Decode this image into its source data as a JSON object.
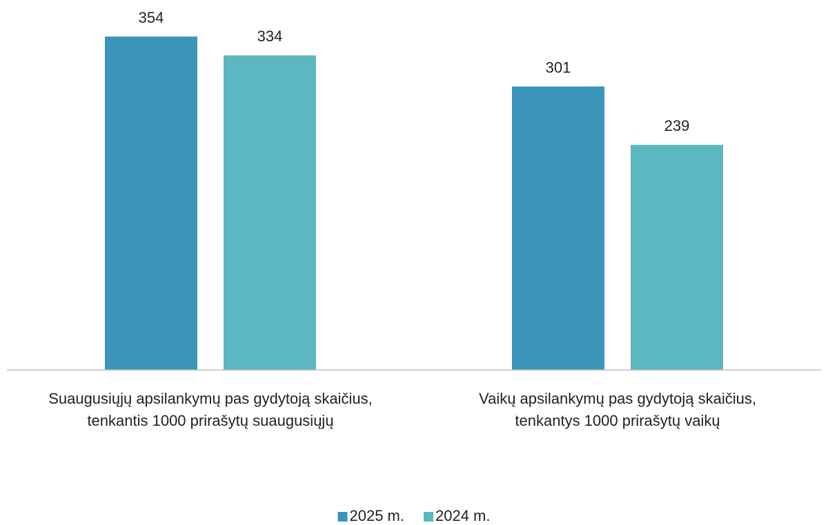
{
  "chart_data": {
    "type": "bar",
    "categories": [
      [
        "Suaugusiųjų apsilankymų pas gydytoją skaičius,",
        "tenkantis 1000 prirašytų suaugusiųjų"
      ],
      [
        "Vaikų apsilankymų pas gydytoją skaičius,",
        "tenkantys 1000 prirašytų vaikų"
      ]
    ],
    "series": [
      {
        "name": "2025 m.",
        "color": "#3a95b9",
        "values": [
          354,
          301
        ]
      },
      {
        "name": "2024 m.",
        "color": "#5cb7c0",
        "values": [
          334,
          239
        ]
      }
    ],
    "ylim": [
      0,
      400
    ],
    "legend": "bottom"
  }
}
